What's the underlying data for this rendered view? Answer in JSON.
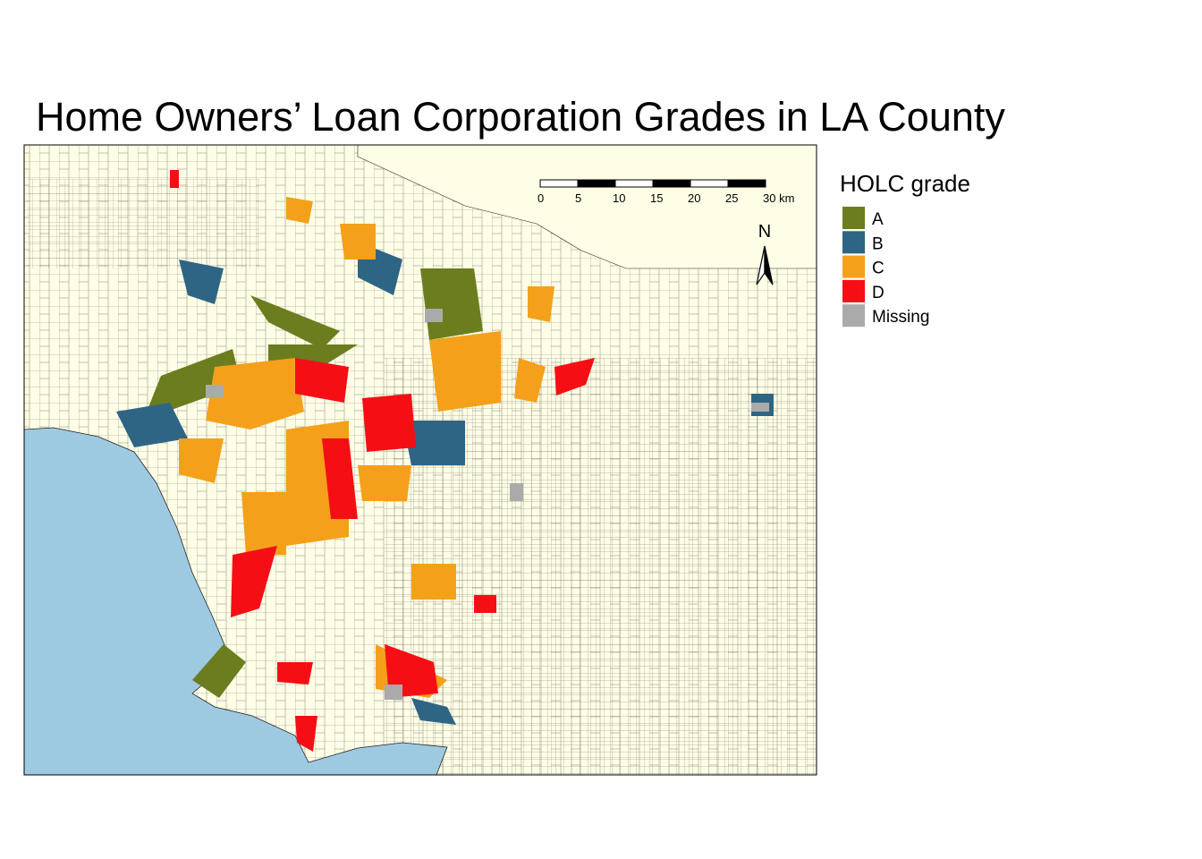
{
  "title": "Home Owners’ Loan Corporation Grades in LA County",
  "legend": {
    "title": "HOLC grade",
    "items": [
      {
        "label": "A",
        "color": "#6b7d1f"
      },
      {
        "label": "B",
        "color": "#2f6584"
      },
      {
        "label": "C",
        "color": "#f5a01a"
      },
      {
        "label": "D",
        "color": "#f50f14"
      },
      {
        "label": "Missing",
        "color": "#aaaaaa"
      }
    ]
  },
  "scale_bar": {
    "labels": [
      "0",
      "5",
      "10",
      "15",
      "20",
      "25",
      "30 km"
    ]
  },
  "north_label": "N"
}
